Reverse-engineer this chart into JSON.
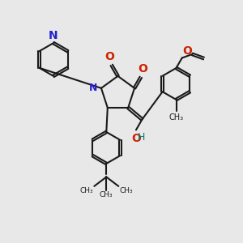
{
  "background_color": "#e8e8e8",
  "bond_color": "#1a1a1a",
  "bond_width": 1.5,
  "N_color": "#2222cc",
  "O_color": "#cc2200",
  "OH_color": "#008080",
  "figsize": [
    3.0,
    3.0
  ],
  "dpi": 100,
  "xlim": [
    0,
    10
  ],
  "ylim": [
    0,
    10
  ]
}
